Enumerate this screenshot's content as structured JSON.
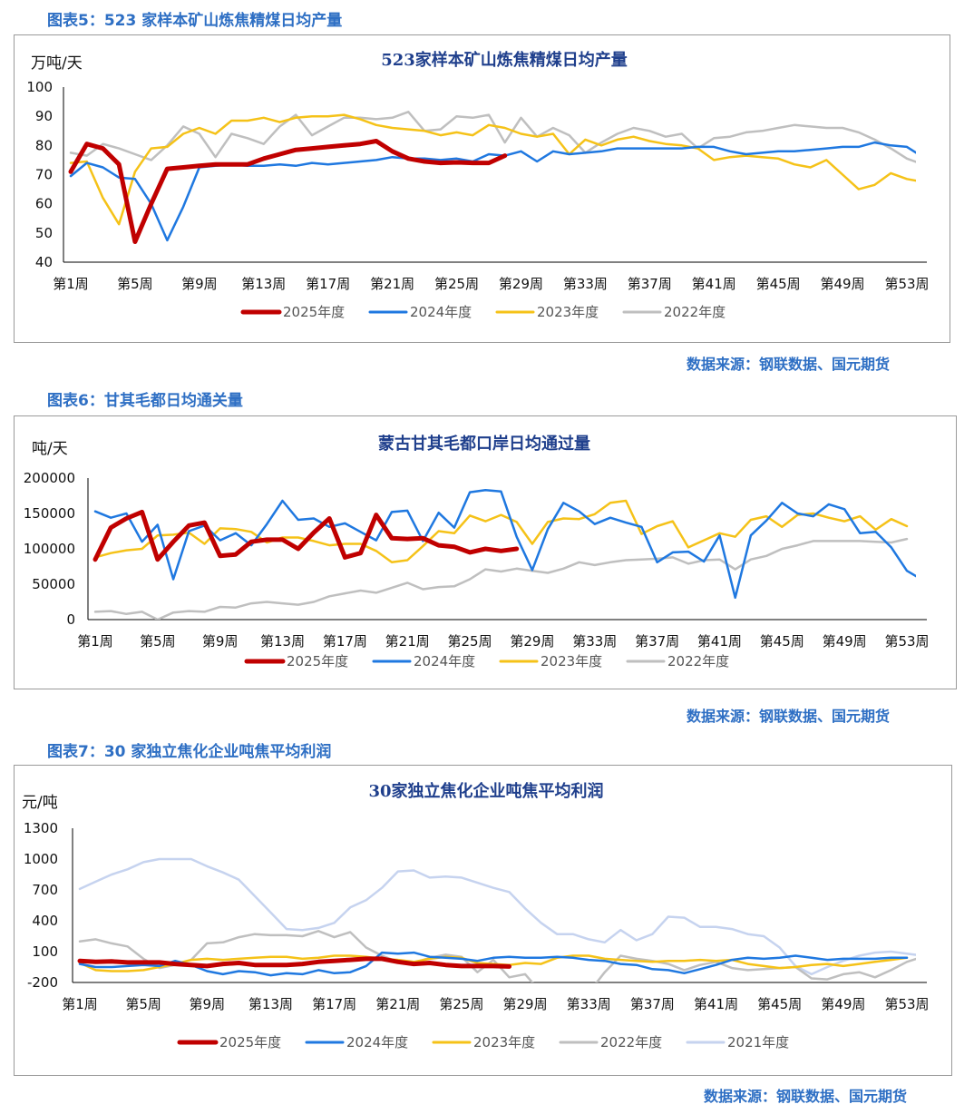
{
  "colors": {
    "s2025": "#c00000",
    "s2024": "#1f78e0",
    "s2023": "#f5c218",
    "s2022": "#bfbfbf",
    "s2021": "#c6d3ef",
    "accent": "#2e6fc4"
  },
  "figures": [
    {
      "caption": "图表5：523 家样本矿山炼焦精煤日均产量",
      "source": "数据来源：钢联数据、国元期货",
      "chart_data": {
        "type": "line",
        "title": "523家样本矿山炼焦精煤日均产量",
        "ylabel": "万吨/天",
        "ylim": [
          40,
          100
        ],
        "yticks": [
          "40",
          "50",
          "60",
          "70",
          "80",
          "90",
          "100"
        ],
        "xtick_labels": [
          "第1周",
          "第5周",
          "第9周",
          "第13周",
          "第17周",
          "第21周",
          "第25周",
          "第29周",
          "第33周",
          "第37周",
          "第41周",
          "第45周",
          "第49周",
          "第53周"
        ],
        "series": [
          {
            "name": "2025年度",
            "color_key": "s2025",
            "width": 5,
            "values": [
              71,
              80.5,
              79,
              73.5,
              47,
              60,
              72,
              72.5,
              73,
              73.5,
              73.5,
              73.5,
              75.5,
              77,
              78.5,
              79,
              79.5,
              80,
              80.5,
              81.5,
              78,
              75.5,
              74.5,
              74,
              74.2,
              74,
              74,
              76.5
            ]
          },
          {
            "name": "2024年度",
            "color_key": "s2024",
            "width": 2.5,
            "values": [
              69.5,
              74,
              72.5,
              69,
              68.5,
              60,
              47.5,
              59,
              72.5,
              73,
              73.5,
              73,
              73,
              73.5,
              73,
              74,
              73.5,
              74,
              74.5,
              75,
              76,
              75.5,
              75.5,
              75,
              75.5,
              74.5,
              77,
              76.5,
              78,
              74.5,
              78,
              77,
              77.5,
              78,
              79,
              79,
              79,
              79,
              79,
              79.5,
              79.5,
              78,
              77,
              77.5,
              78,
              78,
              78.5,
              79,
              79.5,
              79.5,
              81,
              80,
              79.5,
              76
            ]
          },
          {
            "name": "2023年度",
            "color_key": "s2023",
            "width": 2.5,
            "values": [
              74,
              74.5,
              62,
              53,
              71,
              79,
              79.5,
              84,
              86,
              84,
              88.5,
              88.5,
              89.5,
              88,
              89.5,
              90,
              90,
              90.5,
              89,
              87,
              86,
              85.5,
              85,
              83.5,
              84.5,
              83.5,
              87,
              86,
              84,
              83,
              84,
              77,
              82,
              80,
              82,
              83,
              81.5,
              80.5,
              80,
              79,
              75,
              76,
              76.5,
              76,
              75.5,
              73.5,
              72.5,
              75,
              70,
              65,
              66.5,
              70.5,
              68.5,
              67.5
            ]
          },
          {
            "name": "2022年度",
            "color_key": "s2022",
            "width": 2.5,
            "values": [
              77.5,
              76.5,
              80.5,
              79,
              77,
              75,
              80,
              86.5,
              84,
              76,
              84,
              82.5,
              80.5,
              86.5,
              90.5,
              83.5,
              86.5,
              89.5,
              89.5,
              89,
              89.5,
              91.5,
              85,
              85.5,
              90,
              89.5,
              90.5,
              81,
              89.5,
              83,
              86,
              83.5,
              77.5,
              81,
              84,
              86,
              85,
              83,
              84,
              79,
              82.5,
              83,
              84.5,
              85,
              86,
              87,
              86.5,
              86,
              86,
              84.5,
              82,
              79,
              75.5,
              73.5
            ]
          }
        ]
      }
    },
    {
      "caption": "图表6：甘其毛都日均通关量",
      "source": "数据来源：钢联数据、国元期货",
      "chart_data": {
        "type": "line",
        "title": "蒙古甘其毛都口岸日均通过量",
        "ylabel": "吨/天",
        "ylim": [
          0,
          200000
        ],
        "yticks": [
          "0",
          "50000",
          "100000",
          "150000",
          "200000"
        ],
        "xtick_labels": [
          "第1周",
          "第5周",
          "第9周",
          "第13周",
          "第17周",
          "第21周",
          "第25周",
          "第29周",
          "第33周",
          "第37周",
          "第41周",
          "第45周",
          "第49周",
          "第53周"
        ],
        "series": [
          {
            "name": "2025年度",
            "color_key": "s2025",
            "width": 5,
            "values": [
              85000,
              130000,
              143000,
              152000,
              85000,
              110000,
              133000,
              137000,
              90000,
              92000,
              110000,
              113000,
              113000,
              100000,
              123000,
              143000,
              88000,
              94000,
              148000,
              115000,
              114000,
              115000,
              105000,
              103000,
              95000,
              100000,
              97000,
              100000
            ]
          },
          {
            "name": "2024年度",
            "color_key": "s2024",
            "width": 2.5,
            "values": [
              153000,
              144000,
              150000,
              110000,
              134000,
              57000,
              125000,
              133000,
              112000,
              122000,
              105000,
              135000,
              168000,
              141000,
              143000,
              131000,
              136000,
              124000,
              112000,
              152000,
              154000,
              111000,
              151000,
              130000,
              180000,
              183000,
              181000,
              117000,
              70000,
              128000,
              165000,
              153000,
              135000,
              144000,
              137000,
              131000,
              81000,
              95000,
              96000,
              82000,
              119000,
              31000,
              119000,
              140000,
              165000,
              150000,
              146000,
              163000,
              156000,
              122000,
              124000,
              102000,
              69000,
              56000
            ]
          },
          {
            "name": "2023年度",
            "color_key": "s2023",
            "width": 2.5,
            "values": [
              88000,
              94000,
              98000,
              100000,
              119000,
              120000,
              123000,
              107000,
              129000,
              128000,
              124000,
              109000,
              116000,
              116000,
              111000,
              105000,
              107000,
              107000,
              97000,
              81000,
              84000,
              104000,
              125000,
              122000,
              147000,
              139000,
              148000,
              138000,
              107000,
              138000,
              143000,
              142000,
              149000,
              165000,
              168000,
              121000,
              132000,
              139000,
              102000,
              112000,
              122000,
              117000,
              141000,
              146000,
              131000,
              148000,
              150000,
              144000,
              139000,
              146000,
              127000,
              142000,
              132000
            ]
          },
          {
            "name": "2022年度",
            "color_key": "s2022",
            "width": 2.5,
            "values": [
              11000,
              12000,
              8000,
              11000,
              0,
              10000,
              12000,
              11000,
              18000,
              17000,
              23000,
              25000,
              23000,
              21000,
              25000,
              33000,
              37000,
              41000,
              38000,
              45000,
              52000,
              43000,
              46000,
              47000,
              57000,
              71000,
              68000,
              72000,
              69000,
              66000,
              72000,
              81000,
              77000,
              81000,
              84000,
              85000,
              86000,
              88000,
              79000,
              84000,
              85000,
              71000,
              85000,
              90000,
              100000,
              105000,
              111000,
              111000,
              111000,
              111000,
              110000,
              109000,
              114000
            ]
          }
        ]
      }
    },
    {
      "caption": "图表7：30 家独立焦化企业吨焦平均利润",
      "source": "数据来源：钢联数据、国元期货",
      "chart_data": {
        "type": "line",
        "title": "30家独立焦化企业吨焦平均利润",
        "ylabel": "元/吨",
        "ylim": [
          -200,
          1300
        ],
        "yticks": [
          "-200",
          "100",
          "400",
          "700",
          "1000",
          "1300"
        ],
        "xtick_labels": [
          "第1周",
          "第5周",
          "第9周",
          "第13周",
          "第17周",
          "第21周",
          "第25周",
          "第29周",
          "第33周",
          "第37周",
          "第41周",
          "第45周",
          "第49周",
          "第53周"
        ],
        "series": [
          {
            "name": "2025年度",
            "color_key": "s2025",
            "width": 5,
            "values": [
              10,
              0,
              5,
              -5,
              -5,
              -5,
              -20,
              -30,
              -40,
              -20,
              -10,
              -30,
              -30,
              -30,
              -20,
              0,
              10,
              20,
              30,
              30,
              0,
              -20,
              -10,
              -30,
              -40,
              -40,
              -40,
              -45
            ]
          },
          {
            "name": "2024年度",
            "color_key": "s2024",
            "width": 2.5,
            "values": [
              -20,
              -50,
              -50,
              -40,
              -30,
              -40,
              10,
              -30,
              -90,
              -120,
              -90,
              -100,
              -130,
              -110,
              -120,
              -80,
              -110,
              -100,
              -40,
              90,
              80,
              90,
              50,
              40,
              30,
              10,
              40,
              50,
              40,
              40,
              50,
              40,
              20,
              10,
              -20,
              -30,
              -70,
              -80,
              -110,
              -70,
              -30,
              20,
              40,
              30,
              40,
              60,
              40,
              20,
              30,
              30,
              30,
              40,
              40
            ]
          },
          {
            "name": "2023年度",
            "color_key": "s2023",
            "width": 2.5,
            "values": [
              -10,
              -80,
              -90,
              -90,
              -80,
              -50,
              -20,
              20,
              30,
              20,
              30,
              40,
              50,
              50,
              30,
              40,
              60,
              60,
              50,
              30,
              20,
              0,
              30,
              50,
              40,
              -10,
              -20,
              -30,
              -10,
              -20,
              40,
              60,
              60,
              30,
              20,
              10,
              0,
              10,
              10,
              20,
              10,
              20,
              -20,
              -40,
              -60,
              -50,
              -30,
              -20,
              -40,
              -20,
              0,
              20,
              40
            ]
          },
          {
            "name": "2022年度",
            "color_key": "s2022",
            "width": 2.5,
            "values": [
              200,
              220,
              180,
              150,
              30,
              -60,
              -30,
              20,
              180,
              190,
              240,
              270,
              260,
              260,
              250,
              300,
              240,
              290,
              140,
              60,
              0,
              -10,
              40,
              70,
              50,
              -100,
              20,
              -150,
              -120,
              -300,
              -400,
              -400,
              -300,
              -100,
              60,
              30,
              10,
              -20,
              -80,
              -30,
              0,
              -60,
              -80,
              -70,
              -60,
              -50,
              -160,
              -170,
              -120,
              -100,
              -150,
              -80,
              0,
              50,
              60
            ]
          },
          {
            "name": "2021年度",
            "color_key": "s2021",
            "width": 2.5,
            "values": [
              710,
              780,
              850,
              900,
              970,
              1000,
              1000,
              1000,
              930,
              870,
              800,
              640,
              480,
              320,
              310,
              330,
              380,
              530,
              600,
              720,
              880,
              890,
              820,
              830,
              820,
              770,
              720,
              680,
              520,
              380,
              270,
              270,
              220,
              190,
              310,
              210,
              270,
              440,
              430,
              340,
              340,
              320,
              270,
              250,
              140,
              -40,
              -120,
              -50,
              10,
              60,
              90,
              100,
              80,
              60
            ]
          }
        ]
      }
    }
  ]
}
